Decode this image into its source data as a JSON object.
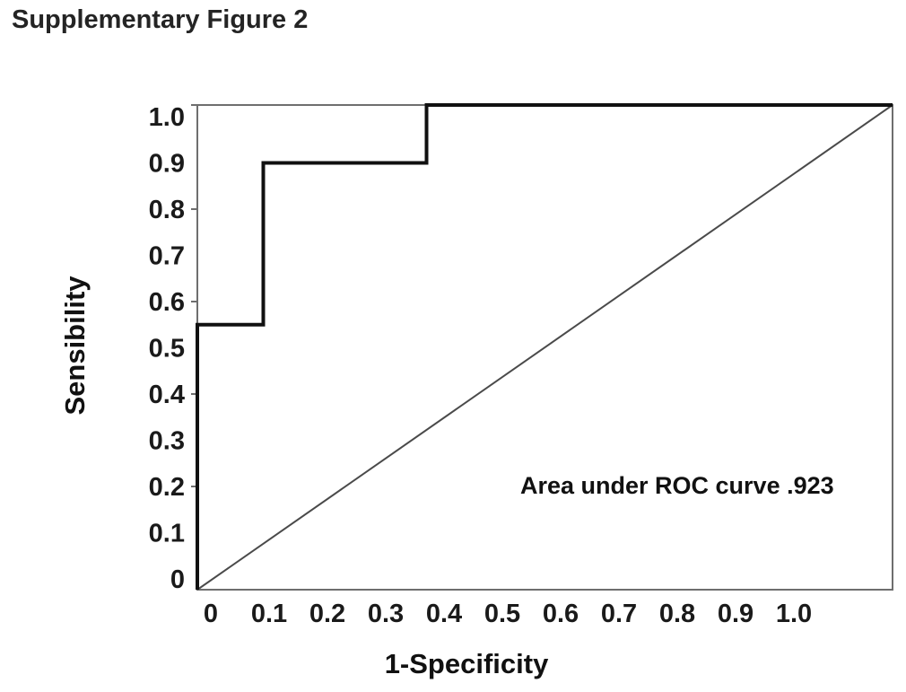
{
  "figure": {
    "title": "Supplementary Figure 2"
  },
  "chart_data": {
    "type": "line",
    "subtype": "roc_step_curve",
    "title": "Supplementary Figure 2",
    "xlabel": "1-Specificity",
    "ylabel": "Sensibility",
    "xlim": [
      0,
      1.0
    ],
    "ylim": [
      0,
      1.0
    ],
    "grid": false,
    "legend": false,
    "x_ticks": [
      "0",
      "0.1",
      "0.2",
      "0.3",
      "0.4",
      "0.5",
      "0.6",
      "0.7",
      "0.8",
      "0.9",
      "1.0"
    ],
    "y_ticks": [
      "0",
      "0.1",
      "0.2",
      "0.3",
      "0.4",
      "0.5",
      "0.6",
      "0.7",
      "0.8",
      "0.9",
      "1.0"
    ],
    "y_minor_tick_values": [
      0.2,
      0.4,
      0.6,
      0.8
    ],
    "annotation": {
      "text": "Area under ROC curve .923",
      "x": 0.78,
      "y": 0.21
    },
    "auc": 0.923,
    "series": [
      {
        "name": "ROC curve",
        "type": "step",
        "stroke": "#111111",
        "stroke_width": 4,
        "points": [
          [
            0,
            0
          ],
          [
            0,
            0.55
          ],
          [
            0.09,
            0.55
          ],
          [
            0.09,
            0.9
          ],
          [
            0.37,
            0.9
          ],
          [
            0.37,
            1.0
          ],
          [
            1.0,
            1.0
          ]
        ]
      },
      {
        "name": "reference diagonal",
        "type": "line",
        "stroke": "#4a4a4a",
        "stroke_width": 2,
        "points": [
          [
            0,
            0
          ],
          [
            1.0,
            1.0
          ]
        ]
      }
    ]
  },
  "colors": {
    "background": "#ffffff",
    "frame": "#6e6e6e",
    "text": "#1a1a1a",
    "curve": "#111111",
    "diagonal": "#4a4a4a"
  }
}
